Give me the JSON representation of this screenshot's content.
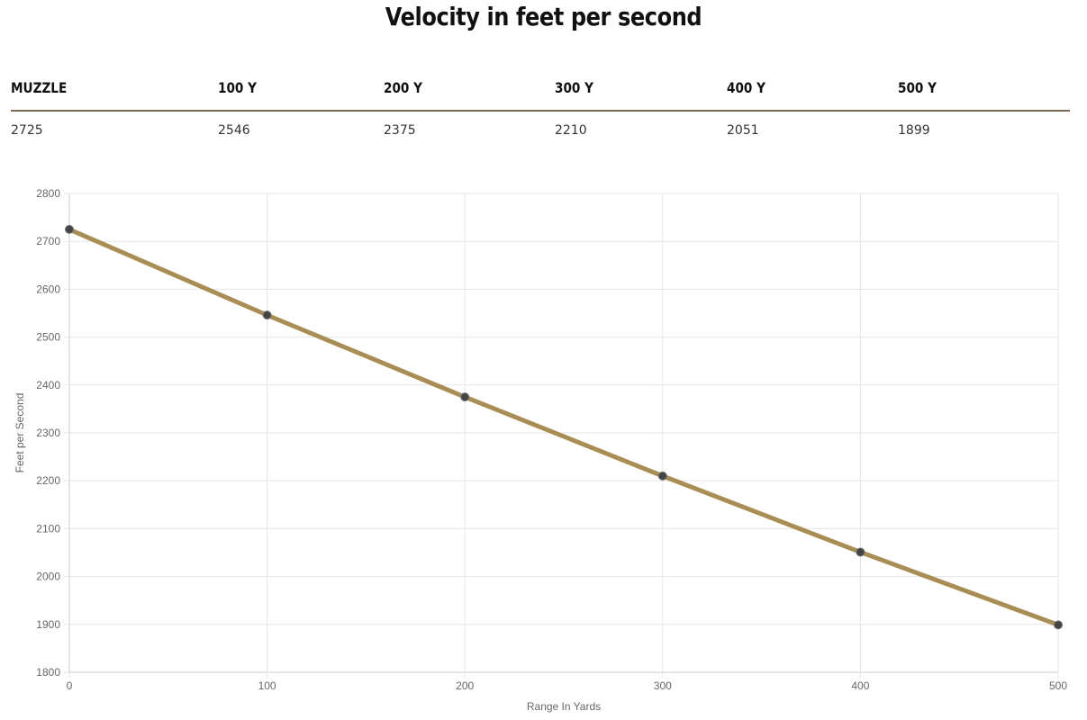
{
  "page": {
    "title": "Velocity in feet per second"
  },
  "table": {
    "headers": [
      "MUZZLE",
      "100 Y",
      "200 Y",
      "300 Y",
      "400 Y",
      "500 Y"
    ],
    "values": [
      "2725",
      "2546",
      "2375",
      "2210",
      "2051",
      "1899"
    ]
  },
  "chart_data": {
    "type": "line",
    "xlabel": "Range In Yards",
    "ylabel": "Feet per Second",
    "x": [
      0,
      100,
      200,
      300,
      400,
      500
    ],
    "series": [
      {
        "values": [
          2725,
          2546,
          2375,
          2210,
          2051,
          1899
        ]
      }
    ],
    "xlim": [
      0,
      500
    ],
    "ylim": [
      1800,
      2800
    ],
    "x_ticks": [
      0,
      100,
      200,
      300,
      400,
      500
    ],
    "y_ticks": [
      1800,
      1900,
      2000,
      2100,
      2200,
      2300,
      2400,
      2500,
      2600,
      2700,
      2800
    ],
    "grid": true,
    "line_color": "#a88d55",
    "point_color": "#444444"
  }
}
